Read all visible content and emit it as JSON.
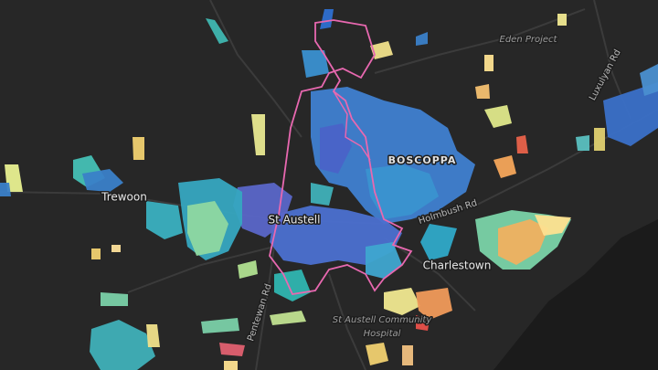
{
  "places": [
    {
      "name": "Eden Project"
    },
    {
      "name": "Luxulyan Rd"
    },
    {
      "name": "BOSCOPPA"
    },
    {
      "name": "Trewoon"
    },
    {
      "name": "St Austell"
    },
    {
      "name": "Holmbush Rd"
    },
    {
      "name": "Charlestown"
    },
    {
      "name": "Pentewan Rd"
    },
    {
      "name": "St Austell Community"
    },
    {
      "name": "Hospital"
    }
  ]
}
